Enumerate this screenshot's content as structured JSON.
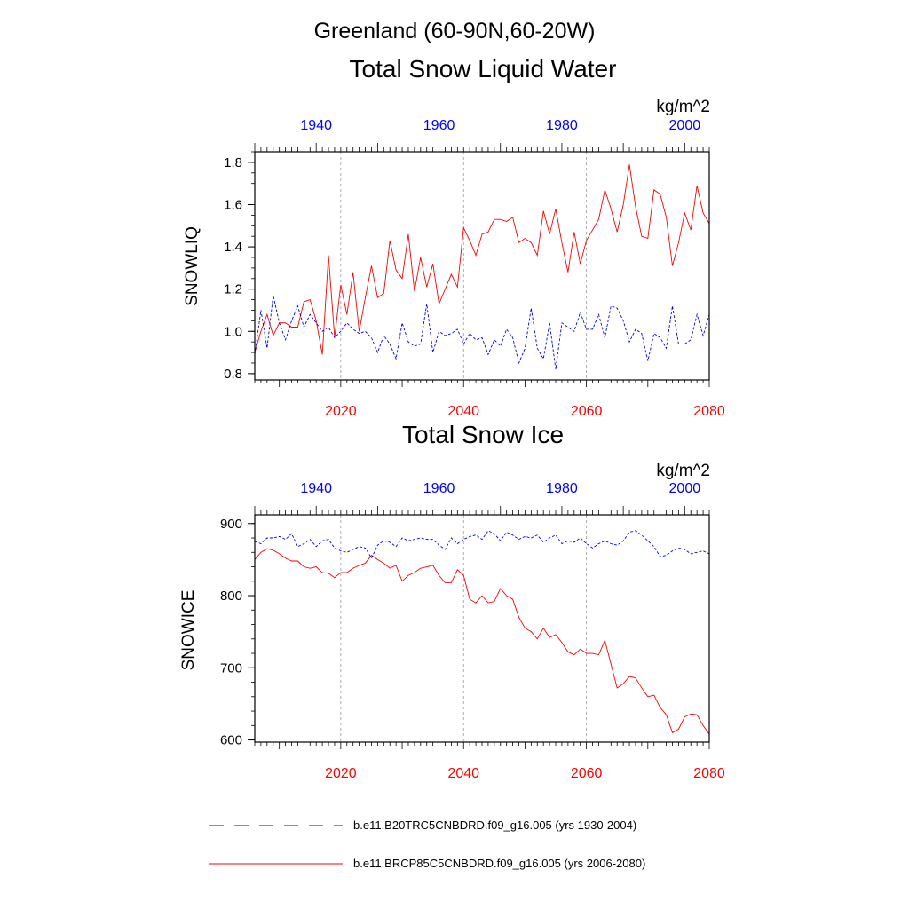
{
  "figure": {
    "title": "Greenland (60-90N,60-20W)"
  },
  "colors": {
    "red": "#ff0000",
    "blue": "#0000ff",
    "axis": "#000000",
    "grid": "#9a9a9a"
  },
  "legend": [
    {
      "label": "b.e11.B20TRC5CNBDRD.f09_g16.005 (yrs 1930-2004)",
      "color": "#0000ff",
      "dashed": true
    },
    {
      "label": "b.e11.BRCP85C5CNBDRD.f09_g16.005 (yrs 2006-2080)",
      "color": "#ff0000",
      "dashed": false
    }
  ],
  "chart_data": [
    {
      "type": "line",
      "title": "Total Snow Liquid Water",
      "units": "kg/m^2",
      "ylabel": "SNOWLIQ",
      "ylim": [
        0.77,
        1.85
      ],
      "yticks": [
        0.8,
        1.0,
        1.2,
        1.4,
        1.6,
        1.8
      ],
      "ytick_labels": [
        "0.8",
        "1.0",
        "1.2",
        "1.4",
        "1.6",
        "1.8"
      ],
      "bottom_xlim": [
        2006,
        2080
      ],
      "bottom_xticks": [
        2020,
        2040,
        2060,
        2080
      ],
      "bottom_xtick_labels": [
        "2020",
        "2040",
        "2060",
        "2080"
      ],
      "top_xlim": [
        1930,
        2004
      ],
      "top_xticks": [
        1940,
        1960,
        1980,
        2000
      ],
      "top_xtick_labels": [
        "1940",
        "1960",
        "1980",
        "2000"
      ],
      "grid_x": [
        2020,
        2040,
        2060
      ],
      "series": [
        {
          "name": "b.e11.BRCP85C5CNBDRD.f09_g16.005 (yrs 2006-2080)",
          "axis": "bottom",
          "x_start": 2006,
          "values": [
            0.9,
            1.0,
            1.08,
            0.98,
            1.04,
            1.04,
            1.02,
            1.02,
            1.14,
            1.15,
            1.05,
            0.89,
            1.36,
            0.97,
            1.22,
            1.08,
            1.28,
            1.0,
            1.16,
            1.31,
            1.16,
            1.18,
            1.43,
            1.29,
            1.25,
            1.46,
            1.19,
            1.35,
            1.21,
            1.32,
            1.13,
            1.2,
            1.27,
            1.21,
            1.49,
            1.43,
            1.36,
            1.46,
            1.47,
            1.53,
            1.53,
            1.52,
            1.54,
            1.42,
            1.44,
            1.42,
            1.36,
            1.57,
            1.46,
            1.58,
            1.42,
            1.28,
            1.47,
            1.32,
            1.43,
            1.48,
            1.53,
            1.67,
            1.58,
            1.47,
            1.6,
            1.79,
            1.59,
            1.45,
            1.44,
            1.67,
            1.65,
            1.54,
            1.31,
            1.42,
            1.56,
            1.48,
            1.69,
            1.56,
            1.51
          ]
        },
        {
          "name": "b.e11.B20TRC5CNBDRD.f09_g16.005 (yrs 1930-2004)",
          "axis": "top",
          "x_start": 1930,
          "values": [
            0.89,
            1.1,
            0.92,
            1.17,
            1.04,
            0.96,
            1.05,
            1.12,
            1.02,
            1.08,
            1.04,
            1.0,
            1.02,
            0.97,
            1.0,
            1.04,
            1.01,
            0.99,
            1.0,
            0.97,
            0.9,
            0.98,
            0.94,
            0.87,
            1.04,
            0.95,
            0.93,
            0.94,
            1.13,
            0.9,
            1.0,
            0.98,
            0.99,
            1.01,
            0.94,
            0.99,
            0.96,
            0.97,
            0.89,
            0.96,
            0.93,
            1.01,
            0.97,
            0.85,
            0.92,
            1.11,
            0.92,
            0.87,
            1.04,
            0.82,
            1.04,
            1.02,
            1.0,
            1.09,
            1.01,
            1.01,
            1.08,
            0.97,
            1.12,
            1.11,
            1.05,
            0.95,
            1.01,
            0.99,
            0.86,
            0.99,
            0.97,
            0.92,
            1.12,
            0.94,
            0.94,
            0.96,
            1.08,
            0.98,
            1.08
          ]
        }
      ]
    },
    {
      "type": "line",
      "title": "Total Snow Ice",
      "units": "kg/m^2",
      "ylabel": "SNOWICE",
      "ylim": [
        597,
        912
      ],
      "yticks": [
        600,
        700,
        800,
        900
      ],
      "ytick_labels": [
        "600",
        "700",
        "800",
        "900"
      ],
      "bottom_xlim": [
        2006,
        2080
      ],
      "bottom_xticks": [
        2020,
        2040,
        2060,
        2080
      ],
      "bottom_xtick_labels": [
        "2020",
        "2040",
        "2060",
        "2080"
      ],
      "top_xlim": [
        1930,
        2004
      ],
      "top_xticks": [
        1940,
        1960,
        1980,
        2000
      ],
      "top_xtick_labels": [
        "1940",
        "1960",
        "1980",
        "2000"
      ],
      "grid_x": [
        2020,
        2040,
        2060
      ],
      "series": [
        {
          "name": "b.e11.BRCP85C5CNBDRD.f09_g16.005 (yrs 2006-2080)",
          "axis": "bottom",
          "x_start": 2006,
          "values": [
            850,
            860,
            865,
            863,
            858,
            852,
            848,
            848,
            840,
            838,
            840,
            832,
            831,
            825,
            832,
            832,
            838,
            842,
            845,
            856,
            850,
            845,
            838,
            842,
            820,
            828,
            832,
            838,
            840,
            842,
            828,
            818,
            818,
            836,
            828,
            795,
            790,
            800,
            790,
            792,
            810,
            800,
            795,
            770,
            755,
            750,
            740,
            755,
            742,
            746,
            735,
            722,
            718,
            726,
            720,
            720,
            718,
            738,
            705,
            672,
            678,
            688,
            686,
            672,
            660,
            662,
            645,
            635,
            610,
            615,
            632,
            636,
            635,
            620,
            608
          ]
        },
        {
          "name": "b.e11.B20TRC5CNBDRD.f09_g16.005 (yrs 1930-2004)",
          "axis": "top",
          "x_start": 1930,
          "values": [
            875,
            872,
            880,
            880,
            882,
            878,
            886,
            868,
            872,
            878,
            868,
            876,
            878,
            866,
            862,
            860,
            864,
            868,
            866,
            852,
            870,
            876,
            874,
            868,
            880,
            876,
            878,
            880,
            878,
            878,
            870,
            864,
            880,
            872,
            878,
            882,
            884,
            878,
            890,
            886,
            876,
            888,
            884,
            878,
            882,
            880,
            884,
            874,
            880,
            884,
            872,
            876,
            874,
            880,
            872,
            866,
            872,
            876,
            872,
            870,
            876,
            888,
            890,
            884,
            876,
            868,
            854,
            856,
            862,
            866,
            864,
            858,
            860,
            862,
            858
          ]
        }
      ]
    }
  ]
}
